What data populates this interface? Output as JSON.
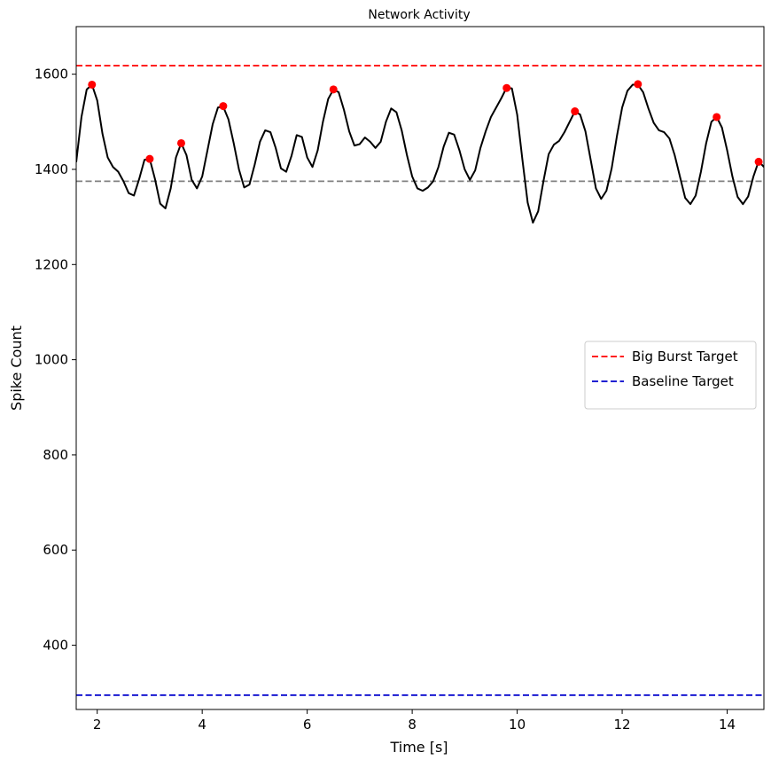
{
  "chart_data": {
    "type": "line",
    "title": "Network Activity",
    "xlabel": "Time [s]",
    "ylabel": "Spike Count",
    "xlim": [
      1.6,
      14.7
    ],
    "ylim": [
      265,
      1700
    ],
    "xticks": [
      2,
      4,
      6,
      8,
      10,
      12,
      14
    ],
    "yticks": [
      400,
      600,
      800,
      1000,
      1200,
      1400,
      1600
    ],
    "grid": false,
    "legend_position": "center-right",
    "series": [
      {
        "kind": "line",
        "color": "#000000",
        "x": [
          1.6,
          1.7,
          1.8,
          1.9,
          2.0,
          2.1,
          2.2,
          2.3,
          2.4,
          2.5,
          2.6,
          2.7,
          2.8,
          2.9,
          3.0,
          3.1,
          3.2,
          3.3,
          3.4,
          3.5,
          3.6,
          3.7,
          3.8,
          3.9,
          4.0,
          4.1,
          4.2,
          4.3,
          4.4,
          4.5,
          4.6,
          4.7,
          4.8,
          4.9,
          5.0,
          5.1,
          5.2,
          5.3,
          5.4,
          5.5,
          5.6,
          5.7,
          5.8,
          5.9,
          6.0,
          6.1,
          6.2,
          6.3,
          6.4,
          6.5,
          6.6,
          6.7,
          6.8,
          6.9,
          7.0,
          7.1,
          7.2,
          7.3,
          7.4,
          7.5,
          7.6,
          7.7,
          7.8,
          7.9,
          8.0,
          8.1,
          8.2,
          8.3,
          8.4,
          8.5,
          8.6,
          8.7,
          8.8,
          8.9,
          9.0,
          9.1,
          9.2,
          9.3,
          9.4,
          9.5,
          9.6,
          9.7,
          9.8,
          9.9,
          10.0,
          10.1,
          10.2,
          10.3,
          10.4,
          10.5,
          10.6,
          10.7,
          10.8,
          10.9,
          11.0,
          11.1,
          11.2,
          11.3,
          11.4,
          11.5,
          11.6,
          11.7,
          11.8,
          11.9,
          12.0,
          12.1,
          12.2,
          12.3,
          12.4,
          12.5,
          12.6,
          12.7,
          12.8,
          12.9,
          13.0,
          13.1,
          13.2,
          13.3,
          13.4,
          13.5,
          13.6,
          13.7,
          13.8,
          13.9,
          14.0,
          14.1,
          14.2,
          14.3,
          14.4,
          14.5,
          14.6,
          14.7
        ],
        "y": [
          1415,
          1510,
          1568,
          1578,
          1545,
          1475,
          1425,
          1405,
          1395,
          1375,
          1350,
          1345,
          1380,
          1420,
          1422,
          1380,
          1328,
          1318,
          1360,
          1425,
          1455,
          1430,
          1378,
          1360,
          1385,
          1440,
          1495,
          1530,
          1532,
          1505,
          1455,
          1400,
          1362,
          1368,
          1410,
          1458,
          1482,
          1478,
          1445,
          1402,
          1395,
          1428,
          1472,
          1468,
          1425,
          1405,
          1440,
          1500,
          1548,
          1568,
          1562,
          1525,
          1480,
          1450,
          1453,
          1467,
          1458,
          1445,
          1458,
          1500,
          1528,
          1520,
          1482,
          1430,
          1385,
          1360,
          1355,
          1362,
          1375,
          1405,
          1448,
          1477,
          1473,
          1440,
          1400,
          1378,
          1398,
          1445,
          1480,
          1510,
          1530,
          1550,
          1572,
          1570,
          1515,
          1420,
          1330,
          1288,
          1312,
          1375,
          1432,
          1452,
          1460,
          1478,
          1500,
          1522,
          1515,
          1480,
          1420,
          1360,
          1338,
          1355,
          1402,
          1470,
          1530,
          1565,
          1578,
          1578,
          1562,
          1528,
          1498,
          1482,
          1478,
          1465,
          1430,
          1385,
          1340,
          1327,
          1345,
          1395,
          1455,
          1500,
          1510,
          1488,
          1440,
          1385,
          1342,
          1327,
          1343,
          1385,
          1417,
          1405
        ]
      },
      {
        "kind": "markers",
        "name": "peaks",
        "color": "#ff0000",
        "x": [
          1.9,
          3.0,
          3.6,
          4.4,
          6.5,
          9.8,
          11.1,
          12.3,
          13.8,
          14.6
        ],
        "y": [
          1578,
          1422,
          1455,
          1533,
          1568,
          1571,
          1522,
          1579,
          1510,
          1416
        ]
      }
    ],
    "reference_lines": [
      {
        "name": "Big Burst Target",
        "y": 1618,
        "color": "#ff0000",
        "style": "dashed",
        "in_legend": true
      },
      {
        "name": "Baseline Target",
        "y": 295,
        "color": "#0000cc",
        "style": "dashed",
        "in_legend": true
      },
      {
        "name": "",
        "y": 1375,
        "color": "#808080",
        "style": "dashed",
        "in_legend": false
      }
    ]
  }
}
